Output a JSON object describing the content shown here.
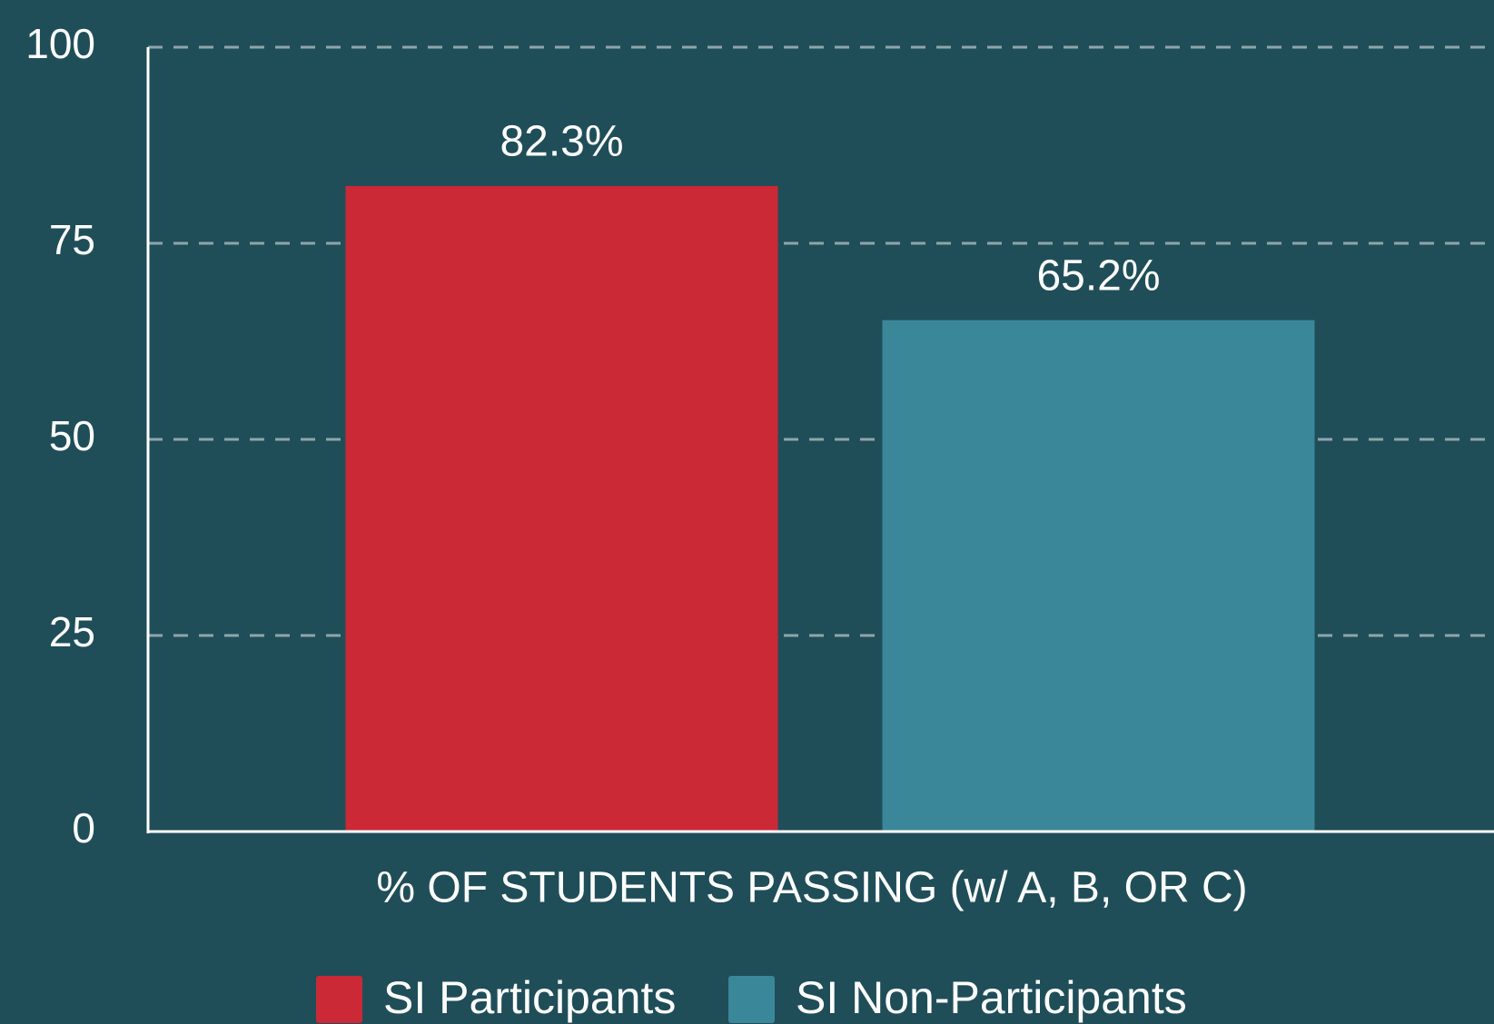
{
  "chart_data": {
    "type": "bar",
    "categories": [
      "% OF STUDENTS PASSING (w/ A, B, OR C)"
    ],
    "series": [
      {
        "name": "SI Participants",
        "color": "#cb2936",
        "values": [
          82.3
        ],
        "value_labels": [
          "82.3%"
        ]
      },
      {
        "name": "SI Non-Participants",
        "color": "#3a8799",
        "values": [
          65.2
        ],
        "value_labels": [
          "65.2%"
        ]
      }
    ],
    "ylim": [
      0,
      100
    ],
    "yticks": [
      0,
      25,
      50,
      75,
      100
    ],
    "grid": true,
    "legend": "bottom"
  }
}
